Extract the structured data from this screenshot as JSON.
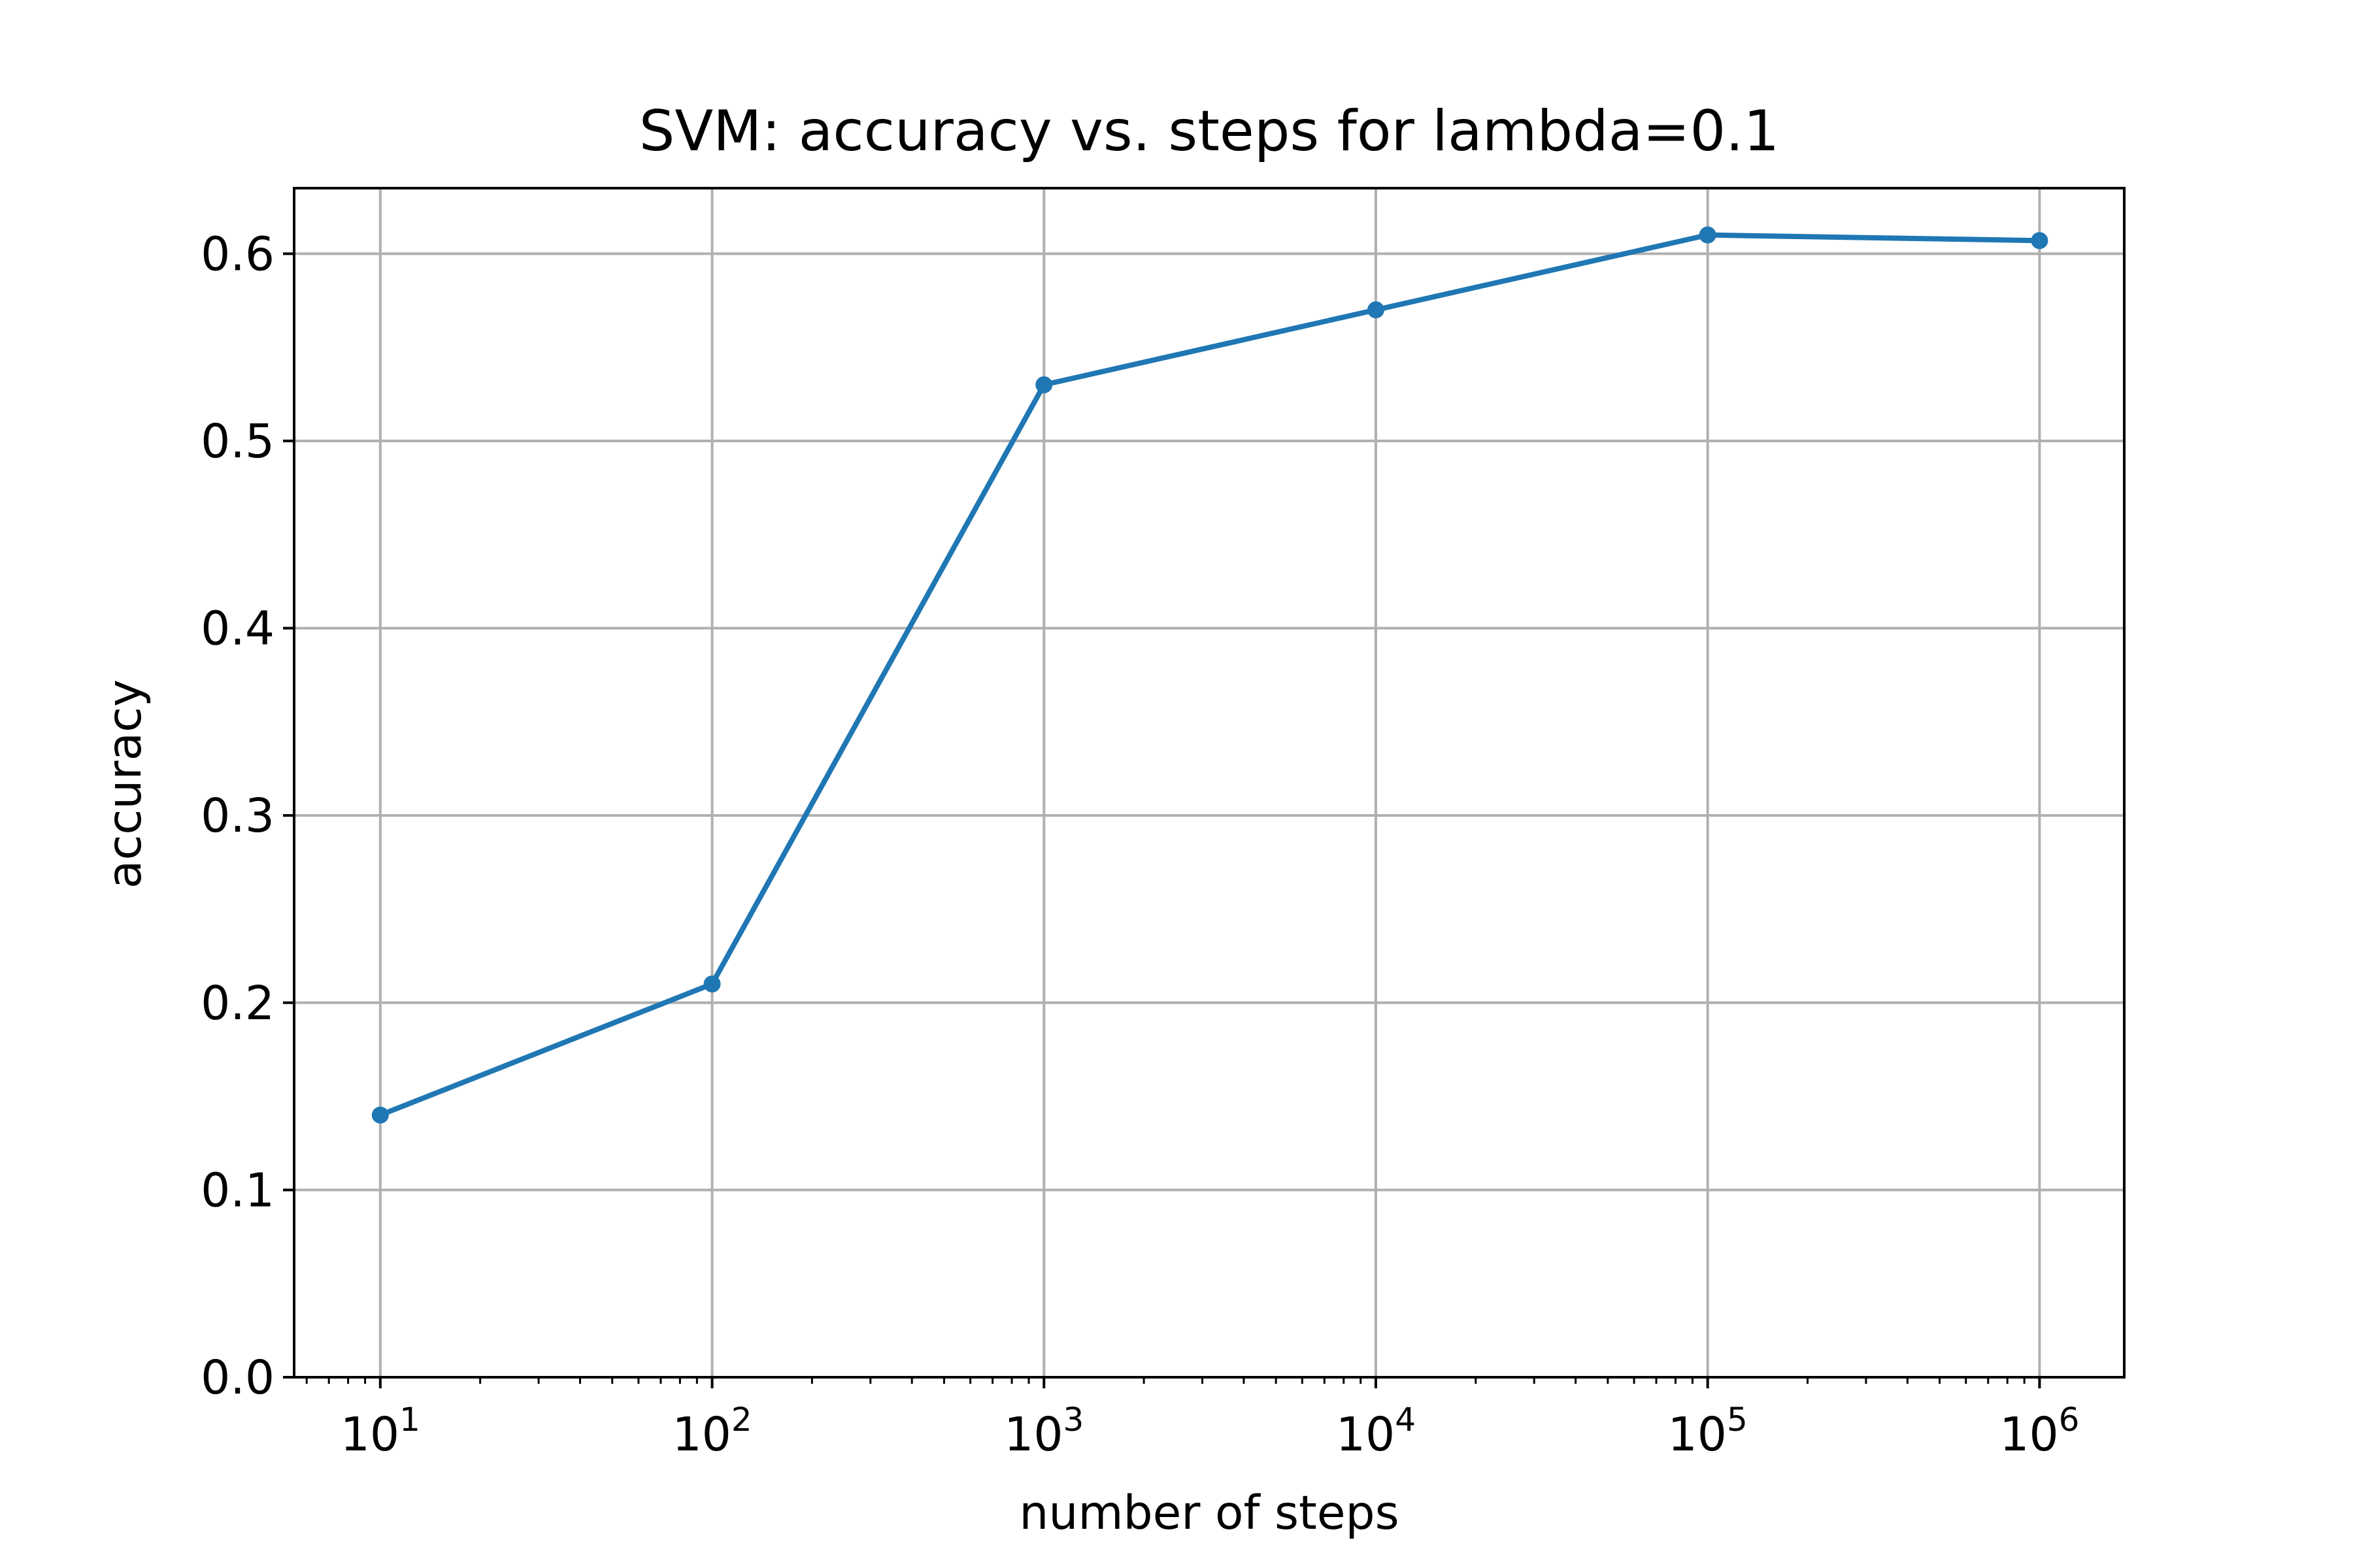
{
  "chart_data": {
    "type": "line",
    "title": "SVM: accuracy vs. steps for lambda=0.1",
    "xlabel": "number of steps",
    "ylabel": "accuracy",
    "xscale": "log",
    "xlim": [
      5.5,
      1800000
    ],
    "ylim": [
      0.0,
      0.635
    ],
    "grid": true,
    "x_ticks": [
      {
        "value": 10,
        "base": "10",
        "exp": "1"
      },
      {
        "value": 100,
        "base": "10",
        "exp": "2"
      },
      {
        "value": 1000,
        "base": "10",
        "exp": "3"
      },
      {
        "value": 10000,
        "base": "10",
        "exp": "4"
      },
      {
        "value": 100000,
        "base": "10",
        "exp": "5"
      },
      {
        "value": 1000000,
        "base": "10",
        "exp": "6"
      }
    ],
    "y_ticks": [
      "0.0",
      "0.1",
      "0.2",
      "0.3",
      "0.4",
      "0.5",
      "0.6"
    ],
    "series": [
      {
        "color": "#1f77b4",
        "x": [
          10,
          100,
          1000,
          10000,
          100000,
          1000000
        ],
        "y": [
          0.14,
          0.21,
          0.53,
          0.57,
          0.61,
          0.607
        ]
      }
    ]
  }
}
